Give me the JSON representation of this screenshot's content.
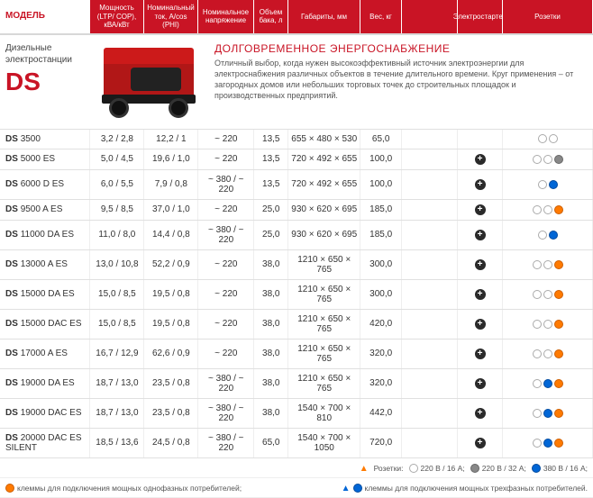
{
  "headers": {
    "model": "МОДЕЛЬ",
    "c1": "Мощность (LTP/ COP), кВА/кВт",
    "c2": "Номинальный ток, А/cos (PHI)",
    "c3": "Номинальное напряжение",
    "c4": "Объем бака, л",
    "c5": "Габариты, мм",
    "c6": "Вес, кг",
    "c7": "",
    "c8": "Электростартер",
    "c9": "Розетки"
  },
  "intro": {
    "line1": "Дизельные",
    "line2": "электростанции",
    "brand": "DS",
    "title": "ДОЛГОВРЕМЕННОЕ ЭНЕРГОСНАБЖЕНИЕ",
    "body": "Отличный выбор, когда нужен высокоэффективный источник электроэнергии для электроснабжения различных объектов в течение длительного времени. Круг применения – от загородных домов или небольших торговых точек до строительных площадок и производственных предприятий."
  },
  "rows": [
    {
      "model": "DS",
      "num": "3500",
      "c1": "3,2 / 2,8",
      "c2": "12,2 / 1",
      "c3": "~ 220",
      "c4": "13,5",
      "c5": "655 × 480 × 530",
      "c6": "65,0",
      "c7": "",
      "c8": "",
      "socks": [
        "w",
        "w"
      ]
    },
    {
      "model": "DS",
      "num": "5000 ES",
      "c1": "5,0 / 4,5",
      "c2": "19,6 / 1,0",
      "c3": "~ 220",
      "c4": "13,5",
      "c5": "720 × 492 × 655",
      "c6": "100,0",
      "c7": "",
      "c8": "+",
      "socks": [
        "w",
        "w",
        "g"
      ]
    },
    {
      "model": "DS",
      "num": "6000 D ES",
      "c1": "6,0 / 5,5",
      "c2": "7,9 / 0,8",
      "c3": "~ 380 / ~ 220",
      "c4": "13,5",
      "c5": "720 × 492 × 655",
      "c6": "100,0",
      "c7": "",
      "c8": "+",
      "socks": [
        "w",
        "b"
      ]
    },
    {
      "model": "DS",
      "num": "9500 A ES",
      "c1": "9,5 / 8,5",
      "c2": "37,0 / 1,0",
      "c3": "~ 220",
      "c4": "25,0",
      "c5": "930 × 620 × 695",
      "c6": "185,0",
      "c7": "",
      "c8": "+",
      "socks": [
        "w",
        "w",
        "o"
      ]
    },
    {
      "model": "DS",
      "num": "11000 DA ES",
      "c1": "11,0 / 8,0",
      "c2": "14,4 / 0,8",
      "c3": "~ 380 / ~ 220",
      "c4": "25,0",
      "c5": "930 × 620 × 695",
      "c6": "185,0",
      "c7": "",
      "c8": "+",
      "socks": [
        "w",
        "b"
      ]
    },
    {
      "model": "DS",
      "num": "13000 A ES",
      "c1": "13,0 / 10,8",
      "c2": "52,2 / 0,9",
      "c3": "~ 220",
      "c4": "38,0",
      "c5": "1210 × 650 × 765",
      "c6": "300,0",
      "c7": "",
      "c8": "+",
      "socks": [
        "w",
        "w",
        "o"
      ]
    },
    {
      "model": "DS",
      "num": "15000 DA ES",
      "c1": "15,0 / 8,5",
      "c2": "19,5 / 0,8",
      "c3": "~ 220",
      "c4": "38,0",
      "c5": "1210 × 650 × 765",
      "c6": "300,0",
      "c7": "",
      "c8": "+",
      "socks": [
        "w",
        "w",
        "o"
      ]
    },
    {
      "model": "DS",
      "num": "15000 DAC ES",
      "c1": "15,0 / 8,5",
      "c2": "19,5 / 0,8",
      "c3": "~ 220",
      "c4": "38,0",
      "c5": "1210 × 650 × 765",
      "c6": "420,0",
      "c7": "",
      "c8": "+",
      "socks": [
        "w",
        "w",
        "o"
      ]
    },
    {
      "model": "DS",
      "num": "17000 A ES",
      "c1": "16,7 / 12,9",
      "c2": "62,6 / 0,9",
      "c3": "~ 220",
      "c4": "38,0",
      "c5": "1210 × 650 × 765",
      "c6": "320,0",
      "c7": "",
      "c8": "+",
      "socks": [
        "w",
        "w",
        "o"
      ]
    },
    {
      "model": "DS",
      "num": "19000 DA ES",
      "c1": "18,7 / 13,0",
      "c2": "23,5 / 0,8",
      "c3": "~ 380 / ~ 220",
      "c4": "38,0",
      "c5": "1210 × 650 × 765",
      "c6": "320,0",
      "c7": "",
      "c8": "+",
      "socks": [
        "w",
        "b",
        "o"
      ]
    },
    {
      "model": "DS",
      "num": "19000 DAC ES",
      "c1": "18,7 / 13,0",
      "c2": "23,5 / 0,8",
      "c3": "~ 380 / ~ 220",
      "c4": "38,0",
      "c5": "1540 × 700 × 810",
      "c6": "442,0",
      "c7": "",
      "c8": "+",
      "socks": [
        "w",
        "b",
        "o"
      ]
    },
    {
      "model": "DS",
      "num": "20000 DAC ES SILENT",
      "c1": "18,5 / 13,6",
      "c2": "24,5 / 0,8",
      "c3": "~ 380 / ~ 220",
      "c4": "65,0",
      "c5": "1540 × 700 × 1050",
      "c6": "720,0",
      "c7": "",
      "c8": "+",
      "socks": [
        "w",
        "b",
        "o"
      ]
    }
  ],
  "legend": {
    "l1": "клеммы для подключения мощных однофазных потребителей;",
    "l2": "клеммы для подключения мощных трехфазных потребителей.",
    "rtitle": "Розетки:",
    "r1": "220 В / 16 А;",
    "r2": "220 В / 32 А;",
    "r3": "380 В / 16 А;"
  }
}
